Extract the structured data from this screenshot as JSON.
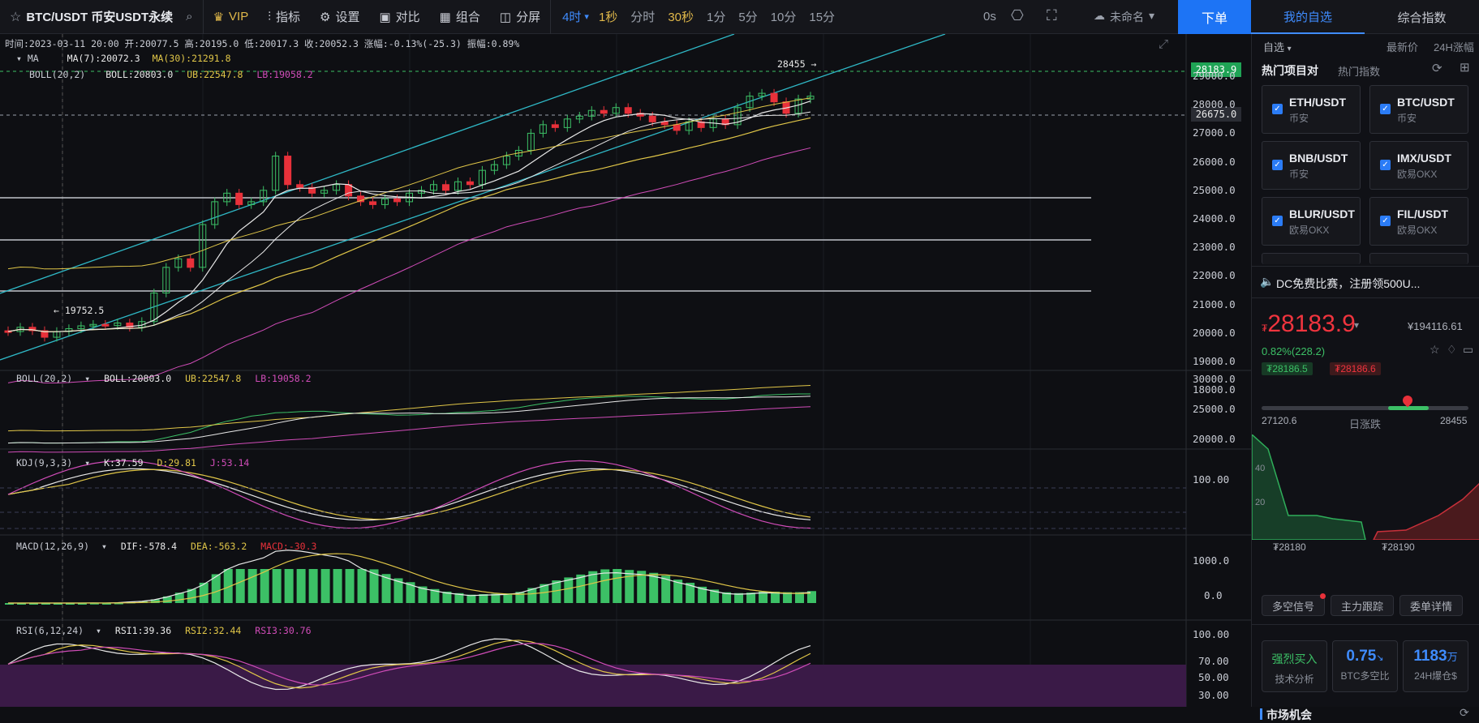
{
  "topbar": {
    "symbol": "BTC/USDT 币安USDT永续",
    "vip": "VIP",
    "indicators": "指标",
    "settings": "设置",
    "compare": "对比",
    "combo": "组合",
    "split": "分屏",
    "periods": [
      "4时",
      "1秒",
      "分时",
      "30秒",
      "1分",
      "5分",
      "10分",
      "15分"
    ],
    "timer": "0s",
    "account": "未命名",
    "order": "下单",
    "tab_watchlist": "我的自选",
    "tab_index": "综合指数"
  },
  "info": {
    "line": "时间:2023-03-11 20:00  开:20077.5  高:20195.0  低:20017.3  收:20052.3  涨幅:-0.13%(-25.3)  振幅:0.89%"
  },
  "main": {
    "ma_title": "MA",
    "ma7": "MA(7):20072.3",
    "ma30": "MA(30):21291.8",
    "boll_title": "BOLL(20,2)",
    "boll_mid": "BOLL:20803.0",
    "boll_ub": "UB:22547.8",
    "boll_lb": "LB:19058.2",
    "high_mark": "28455 →",
    "low_mark": "← 19752.5",
    "price_tag": "28183.9",
    "ref_tag": "26675.0",
    "axis": [
      "29000.0",
      "28000.0",
      "27000.0",
      "26000.0",
      "25000.0",
      "24000.0",
      "23000.0",
      "22000.0",
      "21000.0",
      "20000.0",
      "19000.0",
      "18000.0"
    ]
  },
  "sub_boll": {
    "title": "BOLL(20,2)",
    "mid": "BOLL:20803.0",
    "ub": "UB:22547.8",
    "lb": "LB:19058.2",
    "axis": [
      "30000.0",
      "25000.0",
      "20000.0"
    ]
  },
  "kdj": {
    "title": "KDJ(9,3,3)",
    "k": "K:37.59",
    "d": "D:29.81",
    "j": "J:53.14",
    "axis": [
      "100.00"
    ]
  },
  "macd": {
    "title": "MACD(12,26,9)",
    "dif": "DIF:-578.4",
    "dea": "DEA:-563.2",
    "macd": "MACD:-30.3",
    "axis": [
      "1000.0",
      "0.0"
    ]
  },
  "rsi": {
    "title": "RSI(6,12,24)",
    "r1": "RSI1:39.36",
    "r2": "RSI2:32.44",
    "r3": "RSI3:30.76",
    "axis": [
      "100.00",
      "70.00",
      "50.00",
      "30.00"
    ]
  },
  "right": {
    "filter": "自选",
    "latest": "最新价",
    "change24": "24H涨幅",
    "hot_pairs": "热门项目对",
    "hot_index": "热门指数",
    "pairs": [
      {
        "name": "ETH/USDT",
        "ex": "币安"
      },
      {
        "name": "BTC/USDT",
        "ex": "币安"
      },
      {
        "name": "BNB/USDT",
        "ex": "币安"
      },
      {
        "name": "IMX/USDT",
        "ex": "欧易OKX"
      },
      {
        "name": "BLUR/USDT",
        "ex": "欧易OKX"
      },
      {
        "name": "FIL/USDT",
        "ex": "欧易OKX"
      }
    ],
    "notice": "DC免费比赛，注册领500U...",
    "price": "28183.9",
    "price_prefix": "₮",
    "cny": "¥194116.61",
    "change": "0.82%(228.2)",
    "bid": "₮28186.5",
    "ask": "₮28186.6",
    "low": "27120.6",
    "range_label": "日涨跌",
    "high": "28455",
    "depth_y1": "40",
    "depth_y2": "20",
    "depth_left": "₮28180",
    "depth_right": "₮28190",
    "btn_signal": "多空信号",
    "btn_main": "主力跟踪",
    "btn_orders": "委单详情",
    "stat1_value": "强烈买入",
    "stat1_label": "技术分析",
    "stat2_value": "0.75",
    "stat2_label": "BTC多空比",
    "stat3_value": "1183",
    "stat3_unit": "万",
    "stat3_label": "24H爆仓$",
    "market": "市场机会"
  },
  "colors": {
    "up": "#3cc066",
    "down": "#e8313a",
    "accent": "#1d74f5",
    "gold": "#e0b84a"
  }
}
